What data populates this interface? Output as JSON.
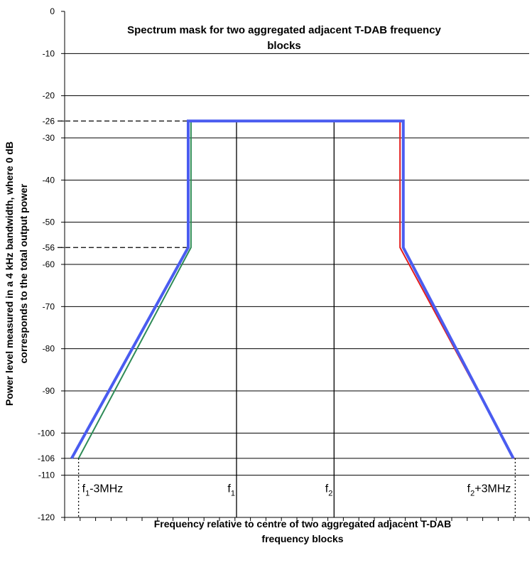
{
  "chart_data": {
    "type": "line",
    "title_lines": [
      "Spectrum mask for two aggregated adjacent T-DAB frequency",
      "blocks"
    ],
    "xlabel_lines": [
      "Frequency relative to centre of two aggregated adjacent T-DAB",
      "frequency blocks"
    ],
    "ylabel_lines": [
      "Power level measured in a 4 kHz bandwidth, where 0 dB",
      "corresponds to the total output power"
    ],
    "ylim": [
      -120,
      0
    ],
    "yticks": [
      0,
      -10,
      -20,
      -26,
      -30,
      -40,
      -50,
      -56,
      -60,
      -70,
      -80,
      -90,
      -100,
      -106,
      -110,
      -120
    ],
    "xlim": [
      0,
      100
    ],
    "x_markers": [
      {
        "x": 3,
        "base": "f",
        "sub": "1",
        "suffix": "-3MHz"
      },
      {
        "x": 37,
        "base": "f",
        "sub": "1",
        "suffix": ""
      },
      {
        "x": 58,
        "base": "f",
        "sub": "2",
        "suffix": ""
      },
      {
        "x": 97,
        "base": "f",
        "sub": "2",
        "suffix": "+3MHz"
      }
    ],
    "grid_horizontal": true,
    "grid_vertical_x": [
      37,
      58
    ],
    "reference_lines": [
      {
        "y": -26,
        "style": "dashed"
      },
      {
        "y": -56,
        "style": "dashed"
      }
    ],
    "series": [
      {
        "color": "#2e8b57",
        "width": 2,
        "x": [
          3,
          27.2,
          27.2,
          72.2
        ],
        "y": [
          -106,
          -56,
          -26,
          -26
        ]
      },
      {
        "color": "#e41c1c",
        "width": 2,
        "x": [
          27.7,
          72.2,
          72.2,
          96.7
        ],
        "y": [
          -26,
          -26,
          -56,
          -106
        ]
      },
      {
        "color": "#4a5cf0",
        "width": 4,
        "x": [
          1.5,
          26.6,
          26.6,
          72.9,
          72.9,
          96.6
        ],
        "y": [
          -106,
          -56,
          -26,
          -26,
          -56,
          -106
        ]
      }
    ]
  }
}
